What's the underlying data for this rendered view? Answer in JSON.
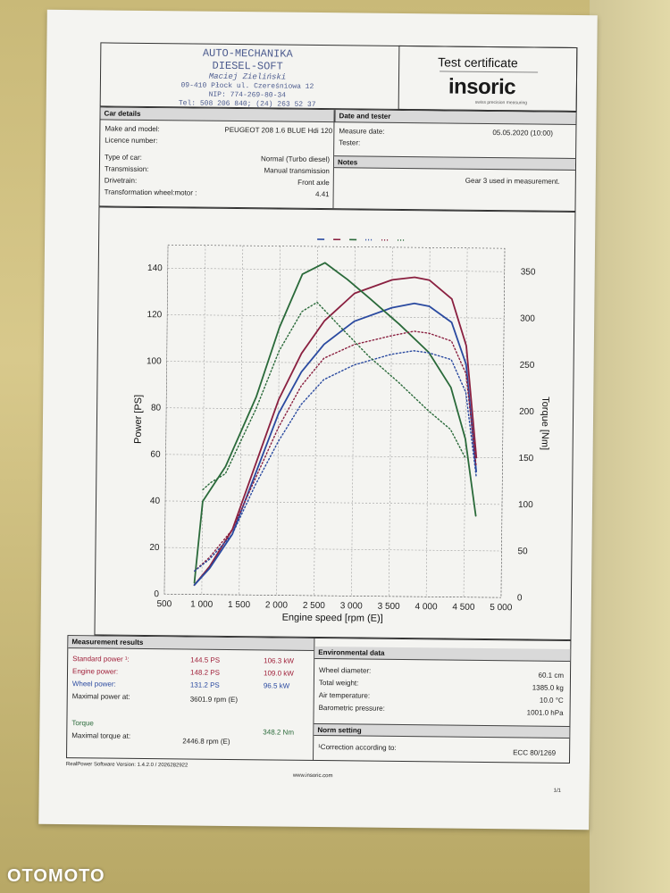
{
  "header": {
    "stamp_line1": "AUTO-MECHANIKA",
    "stamp_line2": "DIESEL-SOFT",
    "stamp_line3": "Maciej Zieliński",
    "stamp_line4": "09-410 Płock ul. Czereśniowa 12",
    "stamp_line5": "NIP: 774-269-80-34",
    "stamp_line6": "Tel: 508 206 840; (24) 263 52 37",
    "cert_title": "Test certificate",
    "brand": "insoric",
    "brand_sub": "swiss precision measuring"
  },
  "car_details": {
    "heading": "Car details",
    "rows": [
      {
        "label": "Make and model:",
        "value": "PEUGEOT 208 1.6 BLUE Hdi 120"
      },
      {
        "label": "Licence number:",
        "value": ""
      },
      {
        "label": "Type of car:",
        "value": "Normal (Turbo diesel)"
      },
      {
        "label": "Transmission:",
        "value": "Manual transmission"
      },
      {
        "label": "Drivetrain:",
        "value": "Front axle"
      },
      {
        "label": "Transformation wheel:motor :",
        "value": "4.41"
      }
    ]
  },
  "date_tester": {
    "heading": "Date and tester",
    "measure_date_label": "Measure date:",
    "measure_date_value": "05.05.2020 (10:00)",
    "tester_label": "Tester:"
  },
  "notes": {
    "heading": "Notes",
    "text": "Gear 3 used in measurement."
  },
  "chart_data": {
    "type": "line",
    "xlabel": "Engine speed [rpm (E)]",
    "ylabel": "Power [PS]",
    "y2label": "Torque [Nm]",
    "xlim": [
      500,
      5000
    ],
    "ylim": [
      0,
      150
    ],
    "y2lim": [
      0,
      375
    ],
    "xticks": [
      "500",
      "1 000",
      "1 500",
      "2 000",
      "2 500",
      "3 000",
      "3 500",
      "4 000",
      "4 500",
      "5 000"
    ],
    "yticks": [
      "0",
      "20",
      "40",
      "60",
      "80",
      "100",
      "120",
      "140"
    ],
    "y2ticks": [
      "0",
      "50",
      "100",
      "150",
      "200",
      "250",
      "300",
      "350"
    ],
    "grid": true,
    "series": [
      {
        "axis": "y2",
        "style": "solid",
        "color": "#8a2040",
        "x": [
          900,
          1100,
          1400,
          1700,
          2000,
          2300,
          2600,
          3000,
          3500,
          3800,
          4000,
          4300,
          4500,
          4650
        ],
        "y": [
          10,
          30,
          70,
          140,
          210,
          260,
          295,
          325,
          340,
          343,
          340,
          320,
          270,
          150
        ]
      },
      {
        "axis": "y2",
        "style": "solid",
        "color": "#2a4aa0",
        "x": [
          900,
          1100,
          1400,
          1700,
          2000,
          2300,
          2600,
          3000,
          3500,
          3800,
          4000,
          4300,
          4500,
          4650
        ],
        "y": [
          10,
          28,
          65,
          130,
          195,
          240,
          270,
          295,
          310,
          315,
          312,
          295,
          250,
          135
        ]
      },
      {
        "axis": "y",
        "style": "solid",
        "color": "#2a6a3a",
        "x": [
          900,
          1000,
          1300,
          1700,
          2000,
          2300,
          2600,
          2900,
          3200,
          3600,
          4000,
          4300,
          4500,
          4650
        ],
        "y": [
          5,
          40,
          55,
          85,
          115,
          138,
          143,
          136,
          128,
          117,
          105,
          90,
          68,
          35
        ]
      },
      {
        "axis": "y2",
        "style": "dotted",
        "color": "#8a2040",
        "x": [
          900,
          1100,
          1400,
          1700,
          2000,
          2300,
          2600,
          3000,
          3500,
          3800,
          4000,
          4300,
          4500,
          4650
        ],
        "y": [
          25,
          40,
          70,
          125,
          180,
          225,
          255,
          270,
          280,
          285,
          283,
          275,
          240,
          140
        ]
      },
      {
        "axis": "y2",
        "style": "dotted",
        "color": "#2a4aa0",
        "x": [
          900,
          1100,
          1400,
          1700,
          2000,
          2300,
          2600,
          3000,
          3500,
          3800,
          4000,
          4300,
          4500,
          4650
        ],
        "y": [
          25,
          38,
          65,
          118,
          165,
          205,
          232,
          248,
          260,
          264,
          262,
          255,
          220,
          130
        ]
      },
      {
        "axis": "y",
        "style": "dotted",
        "color": "#2a6a3a",
        "x": [
          1000,
          1100,
          1300,
          1700,
          2000,
          2300,
          2500,
          2800,
          3200,
          3600,
          4000,
          4300,
          4500
        ],
        "y": [
          45,
          48,
          52,
          80,
          105,
          122,
          126,
          116,
          103,
          92,
          80,
          72,
          60
        ]
      }
    ]
  },
  "measurement": {
    "heading": "Measurement results",
    "standard_power_label": "Standard power ¹:",
    "standard_power_ps": "144.5 PS",
    "standard_power_kw": "106.3 kW",
    "engine_power_label": "Engine power:",
    "engine_power_ps": "148.2 PS",
    "engine_power_kw": "109.0 kW",
    "wheel_power_label": "Wheel power:",
    "wheel_power_ps": "131.2 PS",
    "wheel_power_kw": "96.5 kW",
    "max_power_at_label": "Maximal power at:",
    "max_power_at_value": "3601.9 rpm (E)",
    "torque_label": "Torque",
    "torque_value": "348.2 Nm",
    "max_torque_at_label": "Maximal torque at:",
    "max_torque_at_value": "2446.8 rpm (E)"
  },
  "environment": {
    "heading": "Environmental data",
    "rows": [
      {
        "label": "Wheel diameter:",
        "value": "60.1 cm"
      },
      {
        "label": "Total weight:",
        "value": "1385.0 kg"
      },
      {
        "label": "Air temperature:",
        "value": "10.0 °C"
      },
      {
        "label": "Barometric pressure:",
        "value": "1001.0 hPa"
      }
    ]
  },
  "norm": {
    "heading": "Norm setting",
    "label": "¹Correction according to:",
    "value": "ECC 80/1269"
  },
  "footer": {
    "software": "RealPower Software Version: 1.4.2.0 / 2026282922",
    "website": "www.insoric.com",
    "page": "1/1"
  },
  "watermark": "OTOMOTO",
  "colors": {
    "red": "#a0203a",
    "blue": "#2b4aa0",
    "green": "#2a6a3a",
    "stamp": "#4c5b8e"
  }
}
